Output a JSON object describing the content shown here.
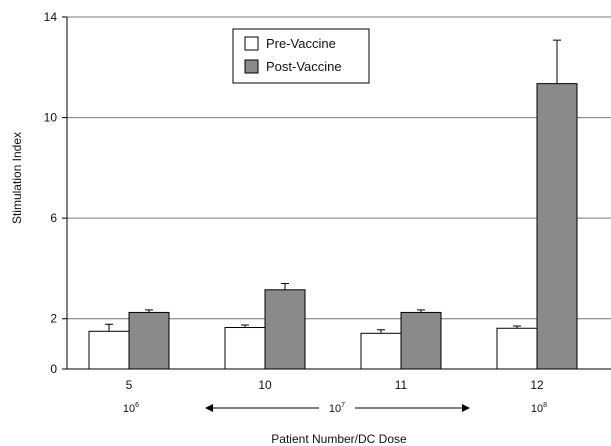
{
  "chart_data": {
    "type": "bar",
    "title": "",
    "xlabel": "Patient Number/DC Dose",
    "ylabel": "Stimulation Index",
    "ylim": [
      0,
      14
    ],
    "yticks": [
      {
        "value": 0,
        "label": "0"
      },
      {
        "value": 2,
        "label": "2"
      },
      {
        "value": 6,
        "label": "6"
      },
      {
        "value": 10,
        "label": "10"
      },
      {
        "value": 14,
        "label": "14"
      }
    ],
    "gridlines": [
      2,
      6,
      10,
      14
    ],
    "categories": [
      "5",
      "10",
      "11",
      "12"
    ],
    "series": [
      {
        "name": "Pre-Vaccine",
        "color": "#ffffff",
        "values": [
          1.5,
          1.65,
          1.42,
          1.62
        ],
        "errors": [
          0.28,
          0.1,
          0.14,
          0.09
        ]
      },
      {
        "name": "Post-Vaccine",
        "color": "#8a8a8a",
        "values": [
          2.25,
          3.15,
          2.25,
          11.35
        ],
        "errors": [
          0.1,
          0.25,
          0.1,
          1.73
        ]
      }
    ],
    "legend_position": "top-center",
    "doses": [
      {
        "base": "10",
        "exp": "6"
      },
      {
        "base": "10",
        "exp": "7"
      },
      {
        "base": "10",
        "exp": "8"
      }
    ]
  }
}
